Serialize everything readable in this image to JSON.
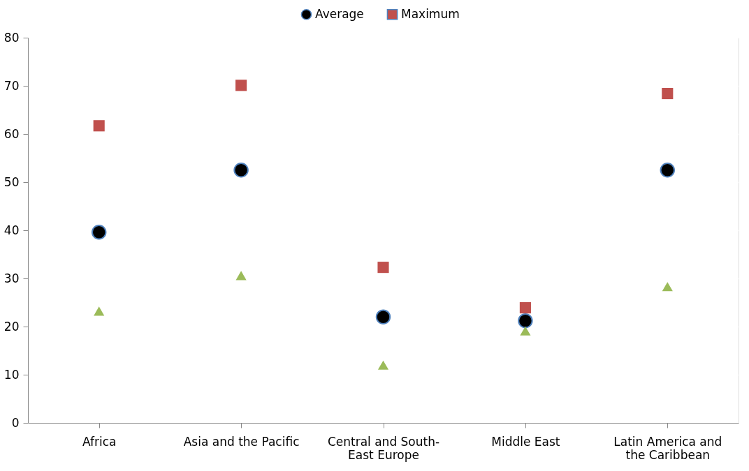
{
  "chart_data": {
    "type": "scatter",
    "categories": [
      "Africa",
      "Asia and the Pacific",
      "Central and South-East Europe",
      "Middle East",
      "Latin America and the Caribbean"
    ],
    "series": [
      {
        "name": "Average",
        "color": "#000000",
        "marker": "circle",
        "values": [
          39.6,
          52.5,
          22.0,
          21.2,
          52.5
        ]
      },
      {
        "name": "Maximum",
        "color": "#c0504d",
        "marker": "square",
        "values": [
          61.7,
          70.1,
          32.3,
          23.9,
          68.4
        ]
      },
      {
        "color": "#9bbb59",
        "marker": "triangle",
        "values": [
          23.2,
          30.6,
          12.0,
          19.1,
          28.3
        ]
      }
    ],
    "ylim": [
      0,
      80
    ],
    "yticks": [
      0,
      10,
      20,
      30,
      40,
      50,
      60,
      70,
      80
    ],
    "grid": "y",
    "legend": "top"
  }
}
